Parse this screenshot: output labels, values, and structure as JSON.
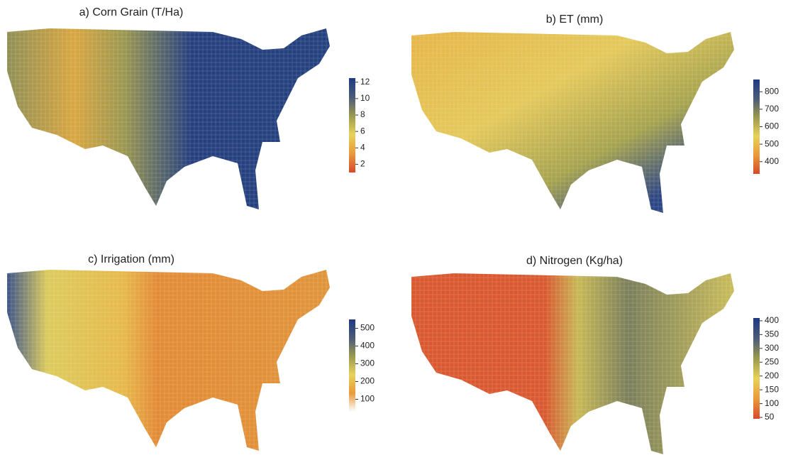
{
  "panels": [
    {
      "title": "a) Corn Grain (T/Ha)",
      "colorbar": {
        "lim": [
          1,
          12.5
        ],
        "ticks": [
          2,
          4,
          6,
          8,
          10,
          12
        ],
        "colors": [
          "#d9482b",
          "#e99a3a",
          "#e8d25a",
          "#9a9a4e",
          "#4a5a78",
          "#1f3a82"
        ]
      }
    },
    {
      "title": "b) ET (mm)",
      "colorbar": {
        "lim": [
          330,
          870
        ],
        "ticks": [
          400,
          500,
          600,
          700,
          800
        ],
        "colors": [
          "#d9482b",
          "#e99a3a",
          "#e8d25a",
          "#9a9a4e",
          "#4a5a78",
          "#1f3a82"
        ]
      }
    },
    {
      "title": "c) Irrigation (mm)",
      "colorbar": {
        "lim": [
          30,
          550
        ],
        "ticks": [
          100,
          200,
          300,
          400,
          500
        ],
        "colors": [
          "#ffffff",
          "#e99a3a",
          "#e8d25a",
          "#9a9a4e",
          "#4a5a78",
          "#1f3a82"
        ]
      }
    },
    {
      "title": "d) Nitrogen  (Kg/ha)",
      "colorbar": {
        "lim": [
          45,
          410
        ],
        "ticks": [
          50,
          100,
          150,
          200,
          250,
          300,
          350,
          400
        ],
        "colors": [
          "#d9482b",
          "#e99a3a",
          "#e8d25a",
          "#9a9a4e",
          "#4a5a78",
          "#1f3a82"
        ]
      }
    }
  ]
}
